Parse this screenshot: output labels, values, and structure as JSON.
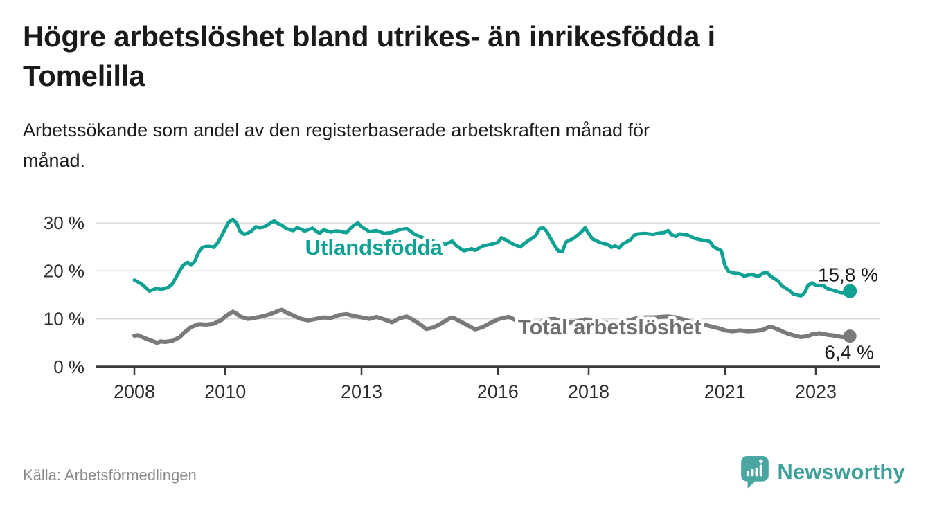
{
  "header": {
    "title_lines": [
      "Högre arbetslöshet bland utrikes- än inrikesfödda i",
      "Tomelilla"
    ],
    "subtitle_lines": [
      "Arbetssökande som andel av den registerbaserade arbetskraften månad för",
      "månad."
    ]
  },
  "chart_data": {
    "type": "line",
    "title": "",
    "xlabel": "",
    "ylabel": "",
    "grid": "horizontal",
    "x_axis": {
      "ticks": [
        2008,
        2010,
        2013,
        2016,
        2018,
        2021,
        2023
      ],
      "labels": [
        "2008",
        "2010",
        "2013",
        "2016",
        "2018",
        "2021",
        "2023"
      ]
    },
    "y_axis": {
      "ticks": [
        0,
        10,
        20,
        30
      ],
      "labels": [
        "0 %",
        "10 %",
        "20 %",
        "30 %"
      ],
      "ylim": [
        0,
        34
      ]
    },
    "series": [
      {
        "name": "Utlandsfödda",
        "color": "#0fa294",
        "end_label": "15,8 %",
        "end_value": 15.8,
        "label_pos": {
          "year": 2013.27,
          "pct": 23.4
        },
        "points": [
          [
            2008.0,
            18.1
          ],
          [
            2008.17,
            17.2
          ],
          [
            2008.33,
            15.8
          ],
          [
            2008.5,
            16.4
          ],
          [
            2008.58,
            16.1
          ],
          [
            2008.75,
            16.6
          ],
          [
            2008.83,
            17.2
          ],
          [
            2008.92,
            18.7
          ],
          [
            2009.0,
            20.1
          ],
          [
            2009.08,
            21.2
          ],
          [
            2009.17,
            21.8
          ],
          [
            2009.25,
            21.2
          ],
          [
            2009.33,
            22.0
          ],
          [
            2009.42,
            24.0
          ],
          [
            2009.5,
            24.9
          ],
          [
            2009.58,
            25.1
          ],
          [
            2009.67,
            25.1
          ],
          [
            2009.75,
            24.9
          ],
          [
            2009.83,
            25.8
          ],
          [
            2009.92,
            27.3
          ],
          [
            2010.0,
            28.8
          ],
          [
            2010.08,
            30.2
          ],
          [
            2010.17,
            30.7
          ],
          [
            2010.25,
            30.0
          ],
          [
            2010.33,
            28.2
          ],
          [
            2010.42,
            27.6
          ],
          [
            2010.5,
            27.9
          ],
          [
            2010.58,
            28.3
          ],
          [
            2010.67,
            29.2
          ],
          [
            2010.75,
            29.0
          ],
          [
            2010.83,
            29.1
          ],
          [
            2010.92,
            29.5
          ],
          [
            2011.0,
            30.0
          ],
          [
            2011.08,
            30.4
          ],
          [
            2011.17,
            29.8
          ],
          [
            2011.25,
            29.5
          ],
          [
            2011.33,
            28.9
          ],
          [
            2011.42,
            28.6
          ],
          [
            2011.5,
            28.4
          ],
          [
            2011.58,
            29.0
          ],
          [
            2011.67,
            28.7
          ],
          [
            2011.75,
            28.3
          ],
          [
            2011.83,
            28.6
          ],
          [
            2011.92,
            28.9
          ],
          [
            2012.0,
            28.3
          ],
          [
            2012.08,
            27.8
          ],
          [
            2012.17,
            28.6
          ],
          [
            2012.25,
            28.3
          ],
          [
            2012.33,
            28.1
          ],
          [
            2012.42,
            28.3
          ],
          [
            2012.5,
            28.3
          ],
          [
            2012.58,
            28.1
          ],
          [
            2012.67,
            28.0
          ],
          [
            2012.75,
            28.8
          ],
          [
            2012.83,
            29.5
          ],
          [
            2012.92,
            30.0
          ],
          [
            2013.0,
            29.2
          ],
          [
            2013.17,
            28.2
          ],
          [
            2013.33,
            28.4
          ],
          [
            2013.5,
            27.8
          ],
          [
            2013.67,
            28.0
          ],
          [
            2013.83,
            28.6
          ],
          [
            2014.0,
            28.8
          ],
          [
            2014.17,
            27.6
          ],
          [
            2014.33,
            27.0
          ],
          [
            2014.5,
            26.3
          ],
          [
            2014.67,
            26.0
          ],
          [
            2014.83,
            25.5
          ],
          [
            2015.0,
            26.2
          ],
          [
            2015.08,
            25.3
          ],
          [
            2015.25,
            24.2
          ],
          [
            2015.42,
            24.6
          ],
          [
            2015.5,
            24.3
          ],
          [
            2015.67,
            25.2
          ],
          [
            2015.83,
            25.5
          ],
          [
            2016.0,
            25.9
          ],
          [
            2016.08,
            26.9
          ],
          [
            2016.17,
            26.5
          ],
          [
            2016.33,
            25.6
          ],
          [
            2016.5,
            25.0
          ],
          [
            2016.58,
            25.7
          ],
          [
            2016.75,
            26.8
          ],
          [
            2016.83,
            27.3
          ],
          [
            2016.92,
            28.8
          ],
          [
            2017.0,
            29.0
          ],
          [
            2017.08,
            28.2
          ],
          [
            2017.25,
            25.3
          ],
          [
            2017.33,
            24.2
          ],
          [
            2017.42,
            24.0
          ],
          [
            2017.5,
            26.0
          ],
          [
            2017.67,
            26.8
          ],
          [
            2017.83,
            28.0
          ],
          [
            2017.92,
            29.0
          ],
          [
            2018.0,
            27.8
          ],
          [
            2018.08,
            26.7
          ],
          [
            2018.25,
            25.9
          ],
          [
            2018.42,
            25.5
          ],
          [
            2018.5,
            24.9
          ],
          [
            2018.58,
            25.2
          ],
          [
            2018.67,
            24.8
          ],
          [
            2018.75,
            25.6
          ],
          [
            2018.92,
            26.5
          ],
          [
            2019.0,
            27.4
          ],
          [
            2019.08,
            27.7
          ],
          [
            2019.25,
            27.8
          ],
          [
            2019.42,
            27.6
          ],
          [
            2019.5,
            27.8
          ],
          [
            2019.67,
            28.0
          ],
          [
            2019.75,
            28.4
          ],
          [
            2019.83,
            27.5
          ],
          [
            2019.92,
            27.2
          ],
          [
            2020.0,
            27.7
          ],
          [
            2020.17,
            27.5
          ],
          [
            2020.33,
            26.8
          ],
          [
            2020.5,
            26.4
          ],
          [
            2020.58,
            26.3
          ],
          [
            2020.67,
            26.1
          ],
          [
            2020.75,
            25.0
          ],
          [
            2020.92,
            24.2
          ],
          [
            2021.0,
            21.1
          ],
          [
            2021.08,
            19.9
          ],
          [
            2021.17,
            19.6
          ],
          [
            2021.33,
            19.4
          ],
          [
            2021.42,
            18.9
          ],
          [
            2021.58,
            19.3
          ],
          [
            2021.67,
            19.0
          ],
          [
            2021.75,
            18.9
          ],
          [
            2021.83,
            19.5
          ],
          [
            2021.92,
            19.7
          ],
          [
            2022.0,
            18.9
          ],
          [
            2022.17,
            17.9
          ],
          [
            2022.25,
            16.9
          ],
          [
            2022.42,
            15.9
          ],
          [
            2022.5,
            15.2
          ],
          [
            2022.67,
            14.8
          ],
          [
            2022.75,
            15.4
          ],
          [
            2022.83,
            17.0
          ],
          [
            2022.92,
            17.5
          ],
          [
            2023.0,
            17.0
          ],
          [
            2023.17,
            16.9
          ],
          [
            2023.25,
            16.3
          ],
          [
            2023.33,
            16.1
          ],
          [
            2023.5,
            15.6
          ],
          [
            2023.58,
            15.4
          ],
          [
            2023.75,
            15.8
          ]
        ]
      },
      {
        "name": "Total arbetslöshet",
        "color": "#7a7a7a",
        "end_label": "6,4 %",
        "end_value": 6.4,
        "label_pos": {
          "year": 2018.46,
          "pct": 6.8
        },
        "points": [
          [
            2008.0,
            6.5
          ],
          [
            2008.08,
            6.6
          ],
          [
            2008.25,
            5.9
          ],
          [
            2008.42,
            5.3
          ],
          [
            2008.5,
            5.0
          ],
          [
            2008.58,
            5.3
          ],
          [
            2008.67,
            5.2
          ],
          [
            2008.83,
            5.4
          ],
          [
            2009.0,
            6.2
          ],
          [
            2009.08,
            7.0
          ],
          [
            2009.25,
            8.3
          ],
          [
            2009.42,
            8.9
          ],
          [
            2009.58,
            8.8
          ],
          [
            2009.75,
            9.0
          ],
          [
            2009.92,
            9.8
          ],
          [
            2010.0,
            10.5
          ],
          [
            2010.08,
            11.0
          ],
          [
            2010.17,
            11.5
          ],
          [
            2010.25,
            11.1
          ],
          [
            2010.33,
            10.5
          ],
          [
            2010.5,
            10.0
          ],
          [
            2010.58,
            10.1
          ],
          [
            2010.75,
            10.4
          ],
          [
            2010.92,
            10.8
          ],
          [
            2011.08,
            11.3
          ],
          [
            2011.17,
            11.7
          ],
          [
            2011.25,
            11.9
          ],
          [
            2011.33,
            11.4
          ],
          [
            2011.5,
            10.7
          ],
          [
            2011.67,
            10.0
          ],
          [
            2011.83,
            9.7
          ],
          [
            2012.0,
            10.0
          ],
          [
            2012.17,
            10.3
          ],
          [
            2012.33,
            10.2
          ],
          [
            2012.5,
            10.8
          ],
          [
            2012.67,
            11.0
          ],
          [
            2012.83,
            10.6
          ],
          [
            2013.0,
            10.3
          ],
          [
            2013.17,
            10.0
          ],
          [
            2013.33,
            10.4
          ],
          [
            2013.5,
            9.9
          ],
          [
            2013.67,
            9.3
          ],
          [
            2013.83,
            10.1
          ],
          [
            2014.0,
            10.5
          ],
          [
            2014.17,
            9.6
          ],
          [
            2014.33,
            8.6
          ],
          [
            2014.42,
            7.9
          ],
          [
            2014.58,
            8.2
          ],
          [
            2014.75,
            9.0
          ],
          [
            2014.92,
            10.0
          ],
          [
            2015.0,
            10.3
          ],
          [
            2015.17,
            9.5
          ],
          [
            2015.33,
            8.7
          ],
          [
            2015.5,
            7.8
          ],
          [
            2015.67,
            8.3
          ],
          [
            2015.83,
            9.1
          ],
          [
            2016.0,
            9.9
          ],
          [
            2016.17,
            10.3
          ],
          [
            2016.25,
            10.4
          ],
          [
            2016.42,
            9.6
          ],
          [
            2016.58,
            8.9
          ],
          [
            2016.75,
            8.7
          ],
          [
            2016.92,
            9.3
          ],
          [
            2017.08,
            9.9
          ],
          [
            2017.25,
            10.0
          ],
          [
            2017.42,
            9.4
          ],
          [
            2017.58,
            9.2
          ],
          [
            2017.75,
            9.5
          ],
          [
            2017.92,
            9.9
          ],
          [
            2018.08,
            9.8
          ],
          [
            2018.25,
            9.4
          ],
          [
            2018.42,
            9.1
          ],
          [
            2018.58,
            9.0
          ],
          [
            2018.75,
            9.4
          ],
          [
            2018.92,
            9.8
          ],
          [
            2019.08,
            10.2
          ],
          [
            2019.25,
            10.3
          ],
          [
            2019.42,
            10.3
          ],
          [
            2019.58,
            10.4
          ],
          [
            2019.75,
            10.5
          ],
          [
            2019.92,
            10.3
          ],
          [
            2020.08,
            9.9
          ],
          [
            2020.25,
            9.4
          ],
          [
            2020.42,
            9.0
          ],
          [
            2020.58,
            8.7
          ],
          [
            2020.75,
            8.3
          ],
          [
            2020.92,
            7.9
          ],
          [
            2021.0,
            7.6
          ],
          [
            2021.17,
            7.4
          ],
          [
            2021.33,
            7.6
          ],
          [
            2021.5,
            7.4
          ],
          [
            2021.67,
            7.5
          ],
          [
            2021.83,
            7.7
          ],
          [
            2021.92,
            8.1
          ],
          [
            2022.0,
            8.4
          ],
          [
            2022.17,
            7.8
          ],
          [
            2022.33,
            7.1
          ],
          [
            2022.5,
            6.6
          ],
          [
            2022.67,
            6.2
          ],
          [
            2022.83,
            6.4
          ],
          [
            2022.92,
            6.8
          ],
          [
            2023.08,
            7.0
          ],
          [
            2023.25,
            6.7
          ],
          [
            2023.42,
            6.5
          ],
          [
            2023.58,
            6.2
          ],
          [
            2023.75,
            6.4
          ]
        ]
      }
    ]
  },
  "footer": {
    "source": "Källa: Arbetsförmedlingen",
    "brand_name": "Newsworthy",
    "brand_color": "#3fa09a"
  }
}
